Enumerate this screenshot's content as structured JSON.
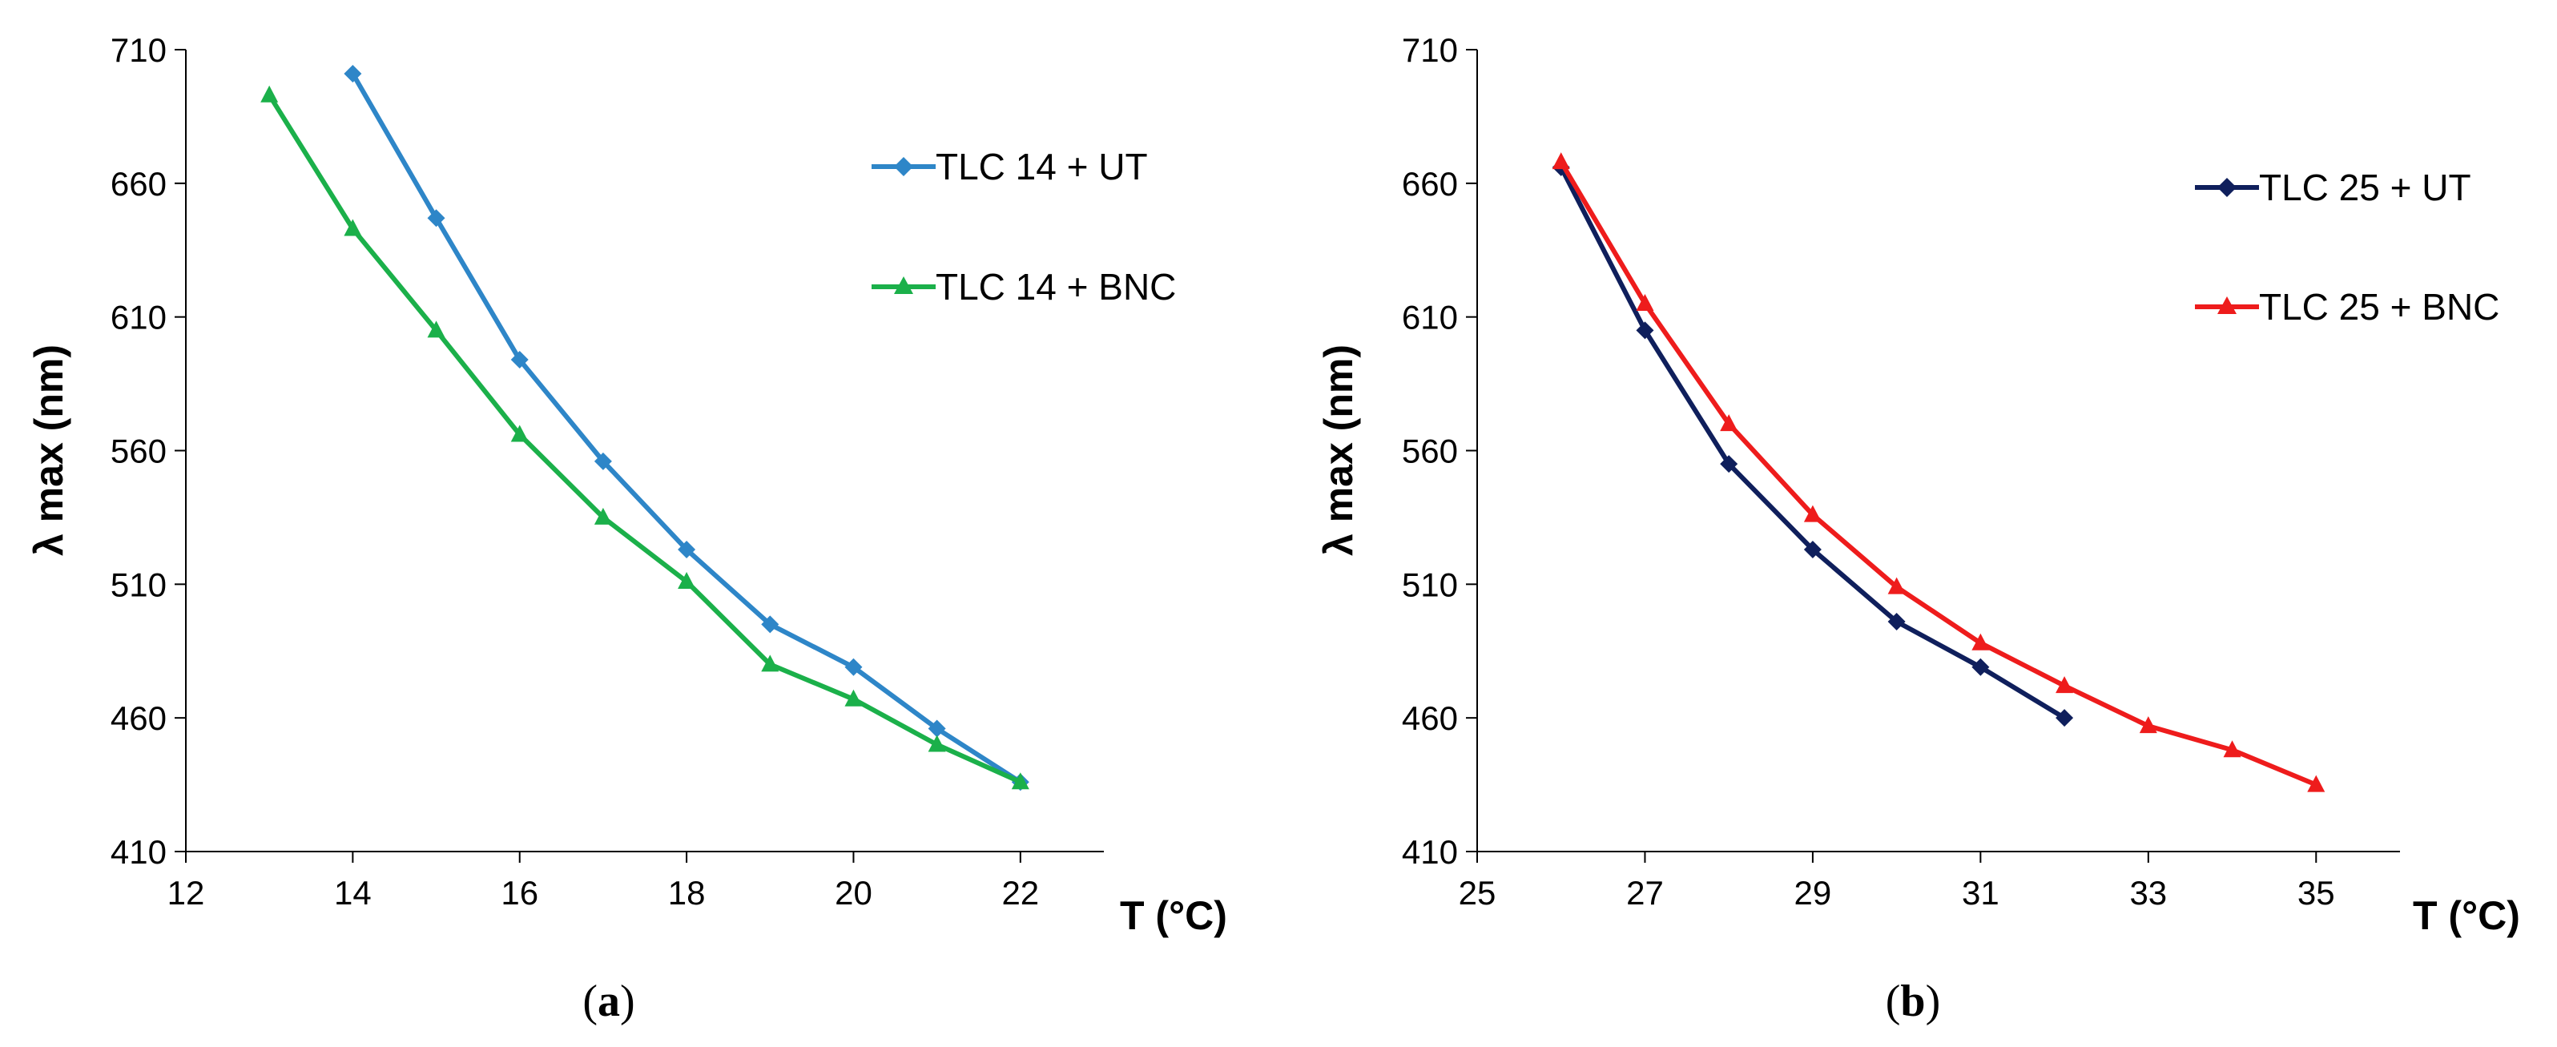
{
  "chart_data": [
    {
      "id": "a",
      "type": "line",
      "panel_label_open": "(",
      "panel_label_letter": "a",
      "panel_label_close": ")",
      "xlabel": "T (°C)",
      "ylabel": "λ max (nm)",
      "xlim": [
        12,
        23
      ],
      "ylim": [
        410,
        710
      ],
      "xticks": [
        12,
        14,
        16,
        18,
        20,
        22
      ],
      "yticks": [
        410,
        460,
        510,
        560,
        610,
        660,
        710
      ],
      "series": [
        {
          "name": "TLC 14 + UT",
          "color": "#2E86C8",
          "marker": "diamond",
          "x": [
            14,
            15,
            16,
            17,
            18,
            19,
            20,
            21,
            22
          ],
          "y": [
            701,
            647,
            594,
            556,
            523,
            495,
            479,
            456,
            436
          ]
        },
        {
          "name": "TLC 14 + BNC",
          "color": "#1BB04A",
          "marker": "triangle",
          "x": [
            13,
            14,
            15,
            16,
            17,
            18,
            19,
            20,
            21,
            22
          ],
          "y": [
            693,
            643,
            605,
            566,
            535,
            511,
            480,
            467,
            450,
            436
          ]
        }
      ]
    },
    {
      "id": "b",
      "type": "line",
      "panel_label_open": "(",
      "panel_label_letter": "b",
      "panel_label_close": ")",
      "xlabel": "T (°C)",
      "ylabel": "λ max (nm)",
      "xlim": [
        25,
        36
      ],
      "ylim": [
        410,
        710
      ],
      "xticks": [
        25,
        27,
        29,
        31,
        33,
        35
      ],
      "yticks": [
        410,
        460,
        510,
        560,
        610,
        660,
        710
      ],
      "series": [
        {
          "name": "TLC 25 + UT",
          "color": "#0F1F5C",
          "marker": "diamond",
          "x": [
            26,
            27,
            28,
            29,
            30,
            31,
            32
          ],
          "y": [
            666,
            605,
            555,
            523,
            496,
            479,
            460
          ]
        },
        {
          "name": "TLC 25 + BNC",
          "color": "#EE1C1C",
          "marker": "triangle",
          "x": [
            26,
            27,
            28,
            29,
            30,
            31,
            32,
            33,
            34,
            35
          ],
          "y": [
            668,
            615,
            570,
            536,
            509,
            488,
            472,
            457,
            448,
            435
          ]
        }
      ]
    }
  ]
}
